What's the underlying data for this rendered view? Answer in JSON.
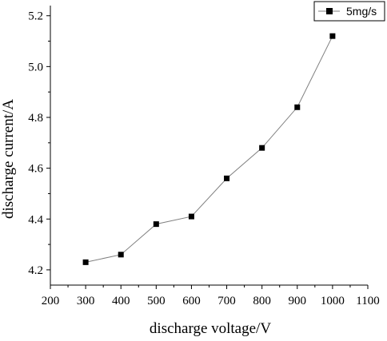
{
  "chart_data": {
    "type": "line",
    "x": [
      300,
      400,
      500,
      600,
      700,
      800,
      900,
      1000
    ],
    "series": [
      {
        "name": "5mg/s",
        "values": [
          4.23,
          4.26,
          4.38,
          4.41,
          4.56,
          4.68,
          4.84,
          5.12
        ],
        "color": "#000000",
        "marker": "square"
      }
    ],
    "xlabel": "discharge voltage/V",
    "ylabel": "discharge current/A",
    "xlim": [
      200,
      1100
    ],
    "ylim": [
      4.14,
      5.24
    ],
    "xticks": [
      200,
      300,
      400,
      500,
      600,
      700,
      800,
      900,
      1000,
      1100
    ],
    "xtick_labels": [
      "200",
      "300",
      "400",
      "500",
      "600",
      "700",
      "800",
      "900",
      "1000",
      "1100"
    ],
    "yticks": [
      4.2,
      4.4,
      4.6,
      4.8,
      5.0,
      5.2
    ],
    "ytick_labels": [
      "4.2",
      "4.4",
      "4.6",
      "4.8",
      "5.0",
      "5.2"
    ],
    "grid": false,
    "legend_position": "top-right",
    "line_color": "#7f7f7f"
  }
}
